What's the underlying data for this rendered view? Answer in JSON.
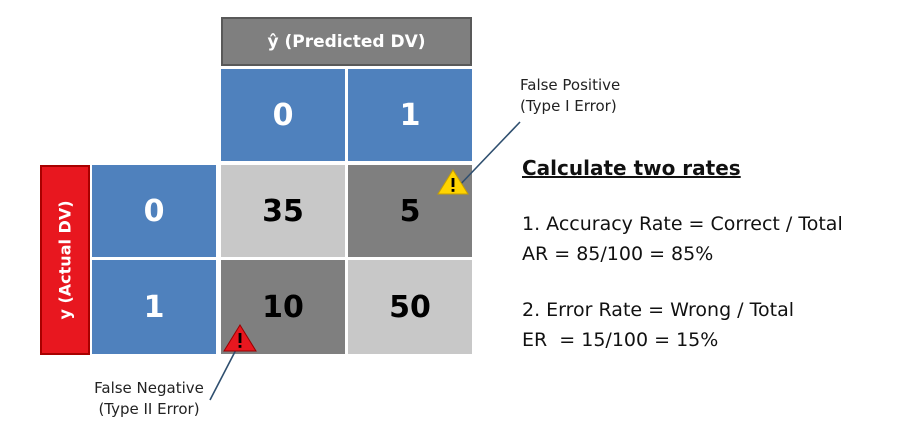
{
  "predicted_header": "ŷ (Predicted DV)",
  "actual_header": "y (Actual DV)",
  "predicted_classes": [
    "0",
    "1"
  ],
  "actual_classes": [
    "0",
    "1"
  ],
  "matrix": {
    "r0c0": "35",
    "r0c1": "5",
    "r1c0": "10",
    "r1c1": "50"
  },
  "false_positive": {
    "line1": "False Positive",
    "line2": "(Type I Error)"
  },
  "false_negative": {
    "line1": "False Negative",
    "line2": "(Type II Error)"
  },
  "rates": {
    "heading": "Calculate two rates",
    "accuracy_def": "1. Accuracy Rate = Correct / Total",
    "accuracy_calc": "AR = 85/100 = 85%",
    "error_def": "2. Error Rate = Wrong / Total",
    "error_calc": "ER  = 15/100 = 15%"
  },
  "colors": {
    "class_blue": "#4f81bd",
    "correct_cell": "#c8c8c8",
    "error_cell": "#7f7f7f",
    "actual_header_red": "#e8171f",
    "warning_yellow": "#ffd400",
    "warning_red": "#e8171f"
  }
}
